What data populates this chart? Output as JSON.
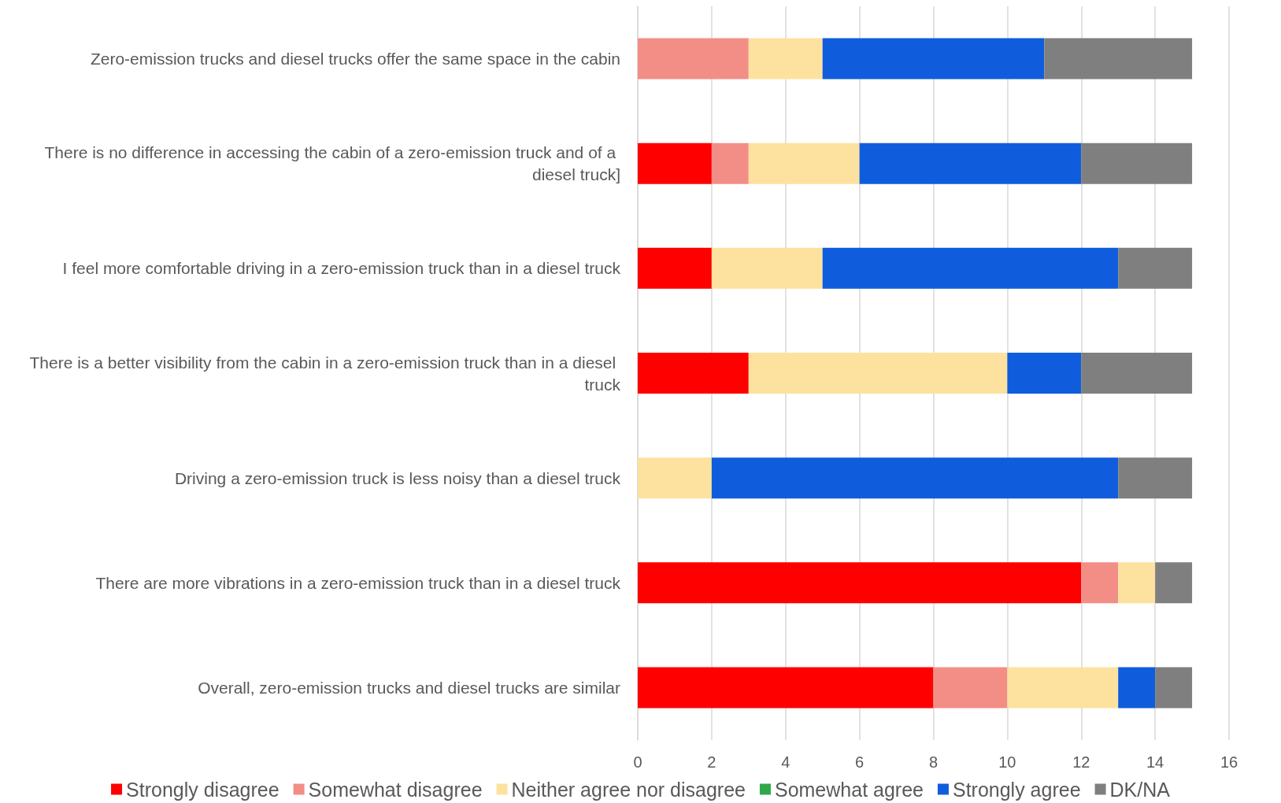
{
  "chart_data": {
    "type": "bar",
    "orientation": "horizontal",
    "stacked": true,
    "categories": [
      "Zero-emission trucks and diesel trucks offer the same space in the cabin",
      "There is no difference in accessing the cabin of a zero-emission truck and of a diesel truck]",
      "I feel more comfortable driving in a zero-emission truck than in a diesel truck",
      "There is a better visibility from the cabin in a zero-emission truck than in a diesel truck",
      "Driving a zero-emission truck is less noisy than a diesel truck",
      "There are more vibrations in a zero-emission truck than in a diesel truck",
      "Overall, zero-emission trucks and diesel trucks are similar"
    ],
    "series": [
      {
        "name": "Strongly disagree",
        "color": "#ff0000",
        "values": [
          0,
          2,
          2,
          3,
          0,
          12,
          8
        ]
      },
      {
        "name": "Somewhat disagree",
        "color": "#f28e86",
        "values": [
          3,
          1,
          0,
          0,
          0,
          1,
          2
        ]
      },
      {
        "name": "Neither agree nor disagree",
        "color": "#fce29e",
        "values": [
          2,
          3,
          3,
          7,
          2,
          1,
          3
        ]
      },
      {
        "name": "Somewhat agree",
        "color": "#2ea84a",
        "values": [
          0,
          0,
          0,
          0,
          0,
          0,
          0
        ]
      },
      {
        "name": "Strongly agree",
        "color": "#0f5ddd",
        "values": [
          6,
          6,
          8,
          2,
          11,
          0,
          1
        ]
      },
      {
        "name": "DK/NA",
        "color": "#7f7f7f",
        "values": [
          4,
          3,
          2,
          3,
          2,
          1,
          1
        ]
      }
    ],
    "xlim": [
      0,
      16
    ],
    "xticks": [
      0,
      2,
      4,
      6,
      8,
      10,
      12,
      14,
      16
    ],
    "grid": "x",
    "legend": "bottom"
  }
}
